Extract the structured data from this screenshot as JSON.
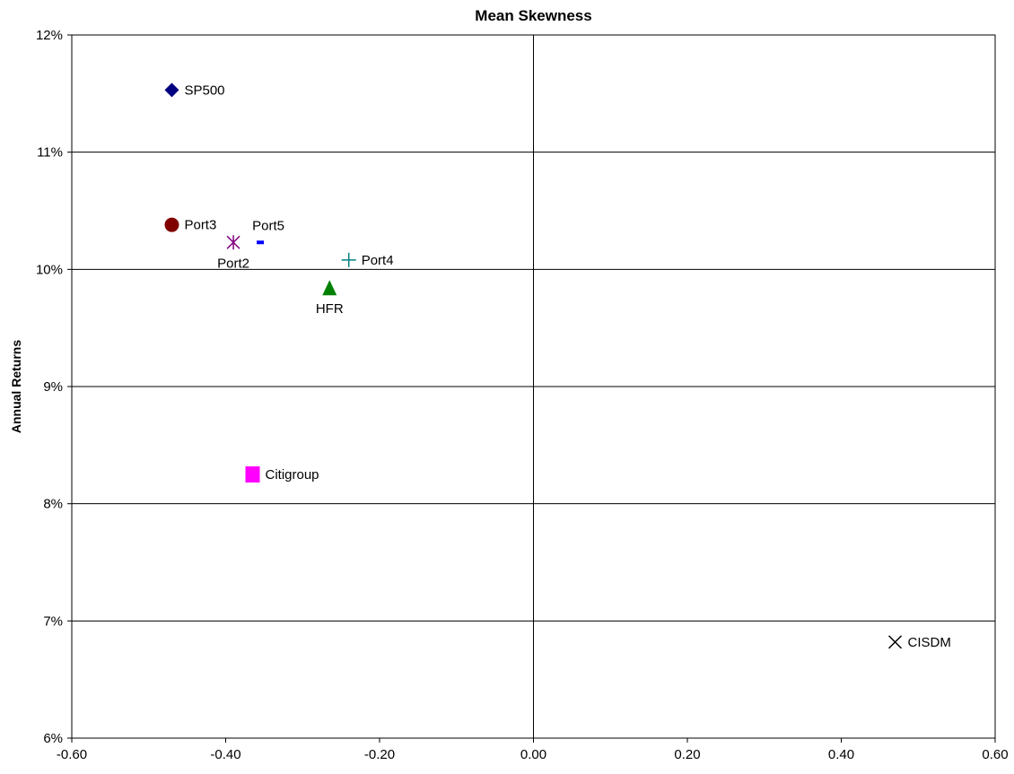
{
  "chart_data": {
    "type": "scatter",
    "title": "Mean Skewness",
    "xlabel": "",
    "ylabel": "Annual Returns",
    "xlim": [
      -0.6,
      0.6
    ],
    "ylim": [
      6,
      12
    ],
    "x_ticks": [
      "-0.60",
      "-0.40",
      "-0.20",
      "0.00",
      "0.20",
      "0.40",
      "0.60"
    ],
    "y_ticks": [
      "6%",
      "7%",
      "8%",
      "9%",
      "10%",
      "11%",
      "12%"
    ],
    "grid": true,
    "legend": "none",
    "points": [
      {
        "label": "SP500",
        "x": -0.47,
        "y": 11.53,
        "marker": "diamond",
        "color": "#000080",
        "label_pos": "right"
      },
      {
        "label": "Port3",
        "x": -0.47,
        "y": 10.38,
        "marker": "circle",
        "color": "#800000",
        "label_pos": "right"
      },
      {
        "label": "Port2",
        "x": -0.39,
        "y": 10.23,
        "marker": "asterisk",
        "color": "#800080",
        "label_pos": "below"
      },
      {
        "label": "Port5",
        "x": -0.355,
        "y": 10.23,
        "marker": "dash",
        "color": "#0000ff",
        "label_pos": "above"
      },
      {
        "label": "Port4",
        "x": -0.24,
        "y": 10.08,
        "marker": "plus",
        "color": "#008080",
        "label_pos": "right"
      },
      {
        "label": "HFR",
        "x": -0.265,
        "y": 9.84,
        "marker": "triangle",
        "color": "#008000",
        "label_pos": "below"
      },
      {
        "label": "Citigroup",
        "x": -0.365,
        "y": 8.25,
        "marker": "square",
        "color": "#ff00ff",
        "label_pos": "right"
      },
      {
        "label": "CISDM",
        "x": 0.47,
        "y": 6.82,
        "marker": "x",
        "color": "#000000",
        "label_pos": "right"
      }
    ]
  }
}
